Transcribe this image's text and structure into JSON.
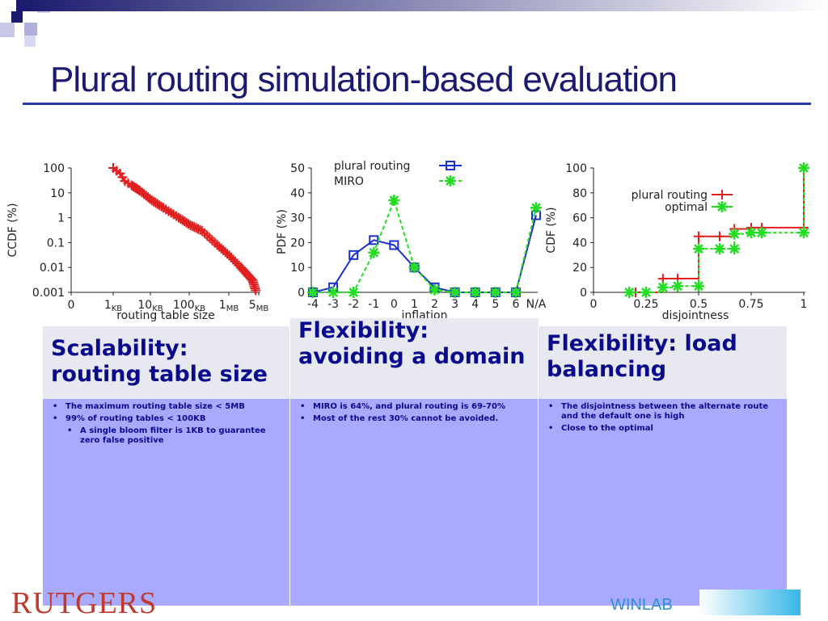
{
  "slide": {
    "title": "Plural routing simulation-based evaluation"
  },
  "colors": {
    "title": "#1a1a6e",
    "red_series": "#e02020",
    "blue_series": "#1a30c8",
    "green_series": "#22dd22",
    "panel_header_bg": "#e8e8f0",
    "panel_body_bg": "#a9aaff"
  },
  "panels": [
    {
      "header": "Scalability: routing table size",
      "bullets": [
        {
          "text": "The maximum routing table size < 5MB",
          "level": 1
        },
        {
          "text": "99% of routing tables < 100KB",
          "level": 1
        },
        {
          "text": "A single bloom filter is 1KB to guarantee zero false positive",
          "level": 2
        }
      ]
    },
    {
      "header": "Flexibility: avoiding a domain",
      "bullets": [
        {
          "text": "MIRO is 64%, and plural routing is 69-70%",
          "level": 1
        },
        {
          "text": "Most of the rest 30% cannot be avoided.",
          "level": 1
        }
      ]
    },
    {
      "header": "Flexibility: load balancing",
      "bullets": [
        {
          "text": "The disjointness between the alternate route and the default one is high",
          "level": 1
        },
        {
          "text": "Close to the optimal",
          "level": 1
        }
      ]
    }
  ],
  "logos": {
    "left": "RUTGERS",
    "right": "WINLAB"
  },
  "chart_data": [
    {
      "type": "line",
      "xlabel": "routing table size",
      "ylabel": "CCDF (%)",
      "yscale": "log",
      "ylim": [
        0.001,
        100
      ],
      "yticks": [
        "100",
        "10",
        "1",
        "0.1",
        "0.01",
        "0.001"
      ],
      "xticks": [
        {
          "main": "0",
          "sub": ""
        },
        {
          "main": "1",
          "sub": "KB"
        },
        {
          "main": "10",
          "sub": "KB"
        },
        {
          "main": "100",
          "sub": "KB"
        },
        {
          "main": "1",
          "sub": "MB"
        },
        {
          "main": "5",
          "sub": "MB"
        }
      ],
      "series": [
        {
          "color": "#e02020",
          "marker": "+",
          "points": [
            [
              "1KB",
              100
            ],
            [
              "1.5KB",
              60
            ],
            [
              "2KB",
              30
            ],
            [
              "3KB",
              20
            ],
            [
              "5KB",
              12
            ],
            [
              "10KB",
              5
            ],
            [
              "20KB",
              2.5
            ],
            [
              "50KB",
              1
            ],
            [
              "100KB",
              0.5
            ],
            [
              "200KB",
              0.3
            ],
            [
              "500KB",
              0.08
            ],
            [
              "1MB",
              0.03
            ],
            [
              "2MB",
              0.01
            ],
            [
              "3MB",
              0.005
            ],
            [
              "4MB",
              0.003
            ],
            [
              "5MB",
              0.001
            ]
          ]
        }
      ]
    },
    {
      "type": "line",
      "xlabel": "inflation",
      "ylabel": "PDF (%)",
      "ylim": [
        0,
        50
      ],
      "yticks": [
        "0",
        "10",
        "20",
        "30",
        "40",
        "50"
      ],
      "categories": [
        "-4",
        "-3",
        "-2",
        "-1",
        "0",
        "1",
        "2",
        "3",
        "4",
        "5",
        "6",
        "N/A"
      ],
      "series": [
        {
          "name": "plural routing",
          "color": "#1a30c8",
          "marker": "square",
          "values": [
            0,
            2,
            15,
            21,
            19,
            10,
            2,
            0,
            0,
            0,
            0,
            31
          ]
        },
        {
          "name": "MIRO",
          "color": "#22dd22",
          "marker": "asterisk",
          "values": [
            0,
            0,
            0,
            16,
            37,
            10,
            1,
            0,
            0,
            0,
            0,
            34
          ]
        }
      ]
    },
    {
      "type": "line",
      "xlabel": "disjointness",
      "ylabel": "CDF (%)",
      "xlim": [
        0,
        1
      ],
      "ylim": [
        0,
        100
      ],
      "xticks": [
        "0",
        "0.25",
        "0.5",
        "0.75",
        "1"
      ],
      "yticks": [
        "0",
        "20",
        "40",
        "60",
        "80",
        "100"
      ],
      "series": [
        {
          "name": "plural routing",
          "color": "#e02020",
          "marker": "+",
          "points": [
            [
              0.2,
              0
            ],
            [
              0.33,
              11
            ],
            [
              0.4,
              11
            ],
            [
              0.5,
              45
            ],
            [
              0.6,
              45
            ],
            [
              0.67,
              51
            ],
            [
              0.75,
              52
            ],
            [
              0.8,
              52
            ],
            [
              1,
              52
            ],
            [
              1,
              100
            ]
          ]
        },
        {
          "name": "optimal",
          "color": "#22dd22",
          "marker": "asterisk",
          "points": [
            [
              0.17,
              0
            ],
            [
              0.25,
              0
            ],
            [
              0.33,
              4
            ],
            [
              0.4,
              5
            ],
            [
              0.5,
              5
            ],
            [
              0.5,
              35
            ],
            [
              0.6,
              35
            ],
            [
              0.67,
              35
            ],
            [
              0.67,
              47
            ],
            [
              0.75,
              48
            ],
            [
              0.8,
              48
            ],
            [
              1,
              48
            ],
            [
              1,
              100
            ]
          ]
        }
      ]
    }
  ]
}
